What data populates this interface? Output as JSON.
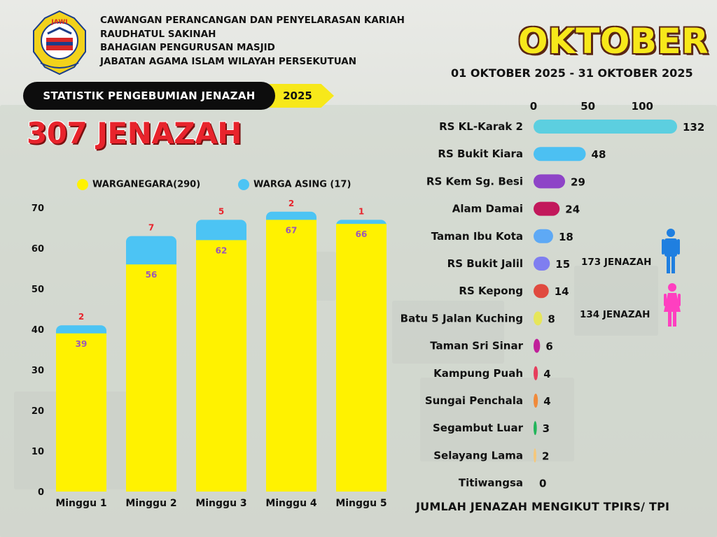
{
  "header": {
    "lines": [
      "CAWANGAN PERANCANGAN DAN PENYELARASAN KARIAH",
      "RAUDHATUL SAKINAH",
      "BAHAGIAN PENGURUSAN MASJID",
      "JABATAN AGAMA ISLAM WILAYAH PERSEKUTUAN"
    ],
    "logo_text": "JAWI"
  },
  "banner": {
    "title": "STATISTIK PENGEBUMIAN JENAZAH",
    "year": "2025"
  },
  "total": "307 JENAZAH",
  "month": "OKTOBER",
  "date_range": "01 OKTOBER 2025 - 31 OKTOBER 2025",
  "gender": {
    "male": "173 JENAZAH",
    "female": "134 JENAZAH",
    "male_color": "#1f7fe0",
    "female_color": "#ff3fc0"
  },
  "colors": {
    "citizen": "#fff200",
    "foreign": "#4cc4f4",
    "value_label_citizen": "#9b59b6",
    "value_label_foreign": "#e8242c"
  },
  "chart_data": [
    {
      "type": "bar",
      "stacked": true,
      "categories": [
        "Minggu 1",
        "Minggu 2",
        "Minggu 3",
        "Minggu 4",
        "Minggu 5"
      ],
      "series": [
        {
          "name": "WARGANEGARA(290)",
          "values": [
            39,
            56,
            62,
            67,
            66
          ],
          "color": "#fff200"
        },
        {
          "name": "WARGA ASING (17)",
          "values": [
            2,
            7,
            5,
            2,
            1
          ],
          "color": "#4cc4f4"
        }
      ],
      "yticks": [
        0,
        10,
        20,
        30,
        40,
        50,
        60,
        70
      ],
      "ylim": [
        0,
        70
      ],
      "legend": "top"
    },
    {
      "type": "bar",
      "orientation": "horizontal",
      "title": "JUMLAH JENAZAH MENGIKUT TPIRS/ TPI",
      "categories": [
        "RS KL-Karak 2",
        "RS Bukit Kiara",
        "RS Kem Sg. Besi",
        "Alam Damai",
        "Taman Ibu Kota",
        "RS Bukit Jalil",
        "RS Kepong",
        "Batu 5 Jalan Kuching",
        "Taman Sri Sinar",
        "Kampung Puah",
        "Sungai Penchala",
        "Segambut Luar",
        "Selayang Lama",
        "Titiwangsa"
      ],
      "values": [
        132,
        48,
        29,
        24,
        18,
        15,
        14,
        8,
        6,
        4,
        4,
        3,
        2,
        0
      ],
      "colors": [
        "#5ccfe0",
        "#4cc0f2",
        "#8e44c7",
        "#c2185b",
        "#5ea9f5",
        "#7f7ef0",
        "#e04a3f",
        "#e6e65a",
        "#c0209a",
        "#e63e5c",
        "#f08a3a",
        "#22b55a",
        "#f5c77a",
        "#cccccc"
      ],
      "xticks": [
        0,
        50,
        100
      ],
      "xlim": [
        0,
        132
      ]
    }
  ]
}
